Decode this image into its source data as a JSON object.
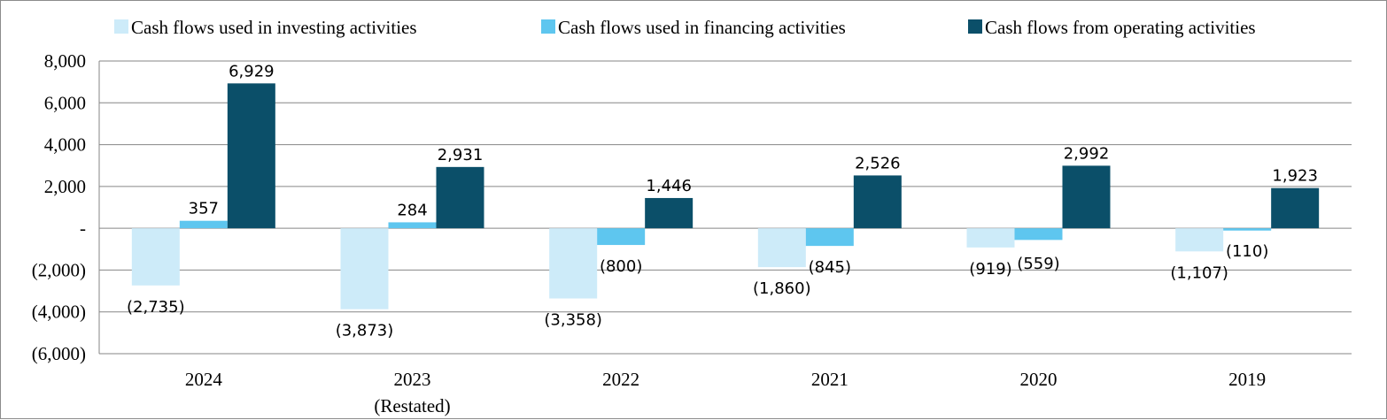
{
  "chart_data": {
    "type": "bar",
    "categories": [
      "2024",
      "2023",
      "2022",
      "2021",
      "2020",
      "2019"
    ],
    "category_sublabels": [
      "",
      "(Restated)",
      "",
      "",
      "",
      ""
    ],
    "series": [
      {
        "name": "Cash flows used in investing activities",
        "color": "#cdebf9",
        "values": [
          -2735,
          -3873,
          -3358,
          -1860,
          -919,
          -1107
        ],
        "labels": [
          "(2,735)",
          "(3,873)",
          "(3,358)",
          "(1,860)",
          "(919)",
          "(1,107)"
        ]
      },
      {
        "name": "Cash flows used in financing activities",
        "color": "#5ec6ef",
        "values": [
          357,
          284,
          -800,
          -845,
          -559,
          -110
        ],
        "labels": [
          "357",
          "284",
          "(800)",
          "(845)",
          "(559)",
          "(110)"
        ]
      },
      {
        "name": "Cash flows from operating activities",
        "color": "#0b4f69",
        "values": [
          6929,
          2931,
          1446,
          2526,
          2992,
          1923
        ],
        "labels": [
          "6,929",
          "2,931",
          "1,446",
          "2,526",
          "2,992",
          "1,923"
        ]
      }
    ],
    "y_ticks": [
      8000,
      6000,
      4000,
      2000,
      0,
      -2000,
      -4000,
      -6000
    ],
    "y_tick_labels": [
      "8,000",
      "6,000",
      "4,000",
      "2,000",
      "-",
      "(2,000)",
      "(4,000)",
      "(6,000)"
    ],
    "ylim": [
      -6000,
      8000
    ],
    "grid": true,
    "legend_position": "top"
  }
}
